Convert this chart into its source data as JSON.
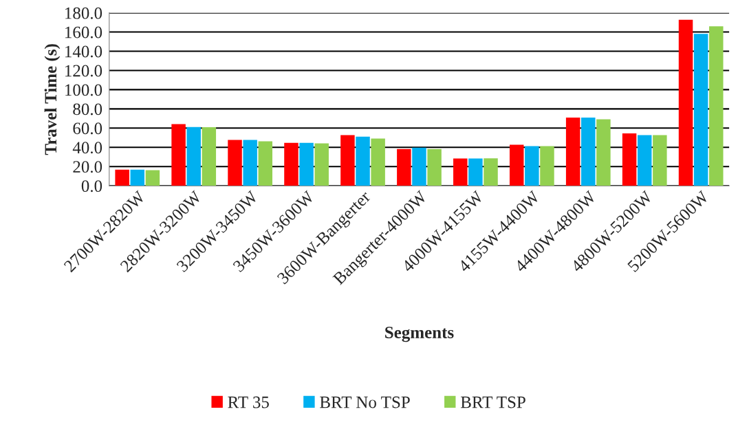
{
  "chart_data": {
    "type": "bar",
    "xlabel": "Segments",
    "ylabel": "Travel Time (s)",
    "categories": [
      "2700W-2820W",
      "2820W-3200W",
      "3200W-3450W",
      "3450W-3600W",
      "3600W-Bangerter",
      "Bangerter-4000W",
      "4000W-4155W",
      "4155W-4400W",
      "4400W-4800W",
      "4800W-5200W",
      "5200W-5600W"
    ],
    "series": [
      {
        "name": "RT 35",
        "color": "#ff0000",
        "values": [
          16.7,
          64.2,
          47.7,
          44.6,
          52.7,
          38.2,
          28.4,
          42.7,
          70.9,
          54.4,
          172.8
        ]
      },
      {
        "name": "BRT No TSP",
        "color": "#00b0f0",
        "values": [
          16.7,
          61.1,
          47.7,
          44.6,
          51.1,
          39.6,
          28.4,
          41.3,
          70.9,
          52.7,
          158.0
        ]
      },
      {
        "name": "BRT TSP",
        "color": "#92d050",
        "values": [
          16.2,
          60.9,
          46.3,
          44.2,
          49.2,
          38.2,
          28.6,
          41.3,
          69.2,
          52.7,
          165.9
        ]
      }
    ],
    "ylim": [
      0,
      180
    ],
    "yticks": [
      {
        "value": 0,
        "label": "0.0"
      },
      {
        "value": 20,
        "label": "20.0"
      },
      {
        "value": 40,
        "label": "40.0"
      },
      {
        "value": 60,
        "label": "60.0"
      },
      {
        "value": 80,
        "label": "80.0"
      },
      {
        "value": 100,
        "label": "100.0"
      },
      {
        "value": 120,
        "label": "120.0"
      },
      {
        "value": 140,
        "label": "140.0"
      },
      {
        "value": 160,
        "label": "160.0"
      },
      {
        "value": 180,
        "label": "180.0"
      }
    ],
    "grid": "y",
    "legend": "bottom"
  }
}
